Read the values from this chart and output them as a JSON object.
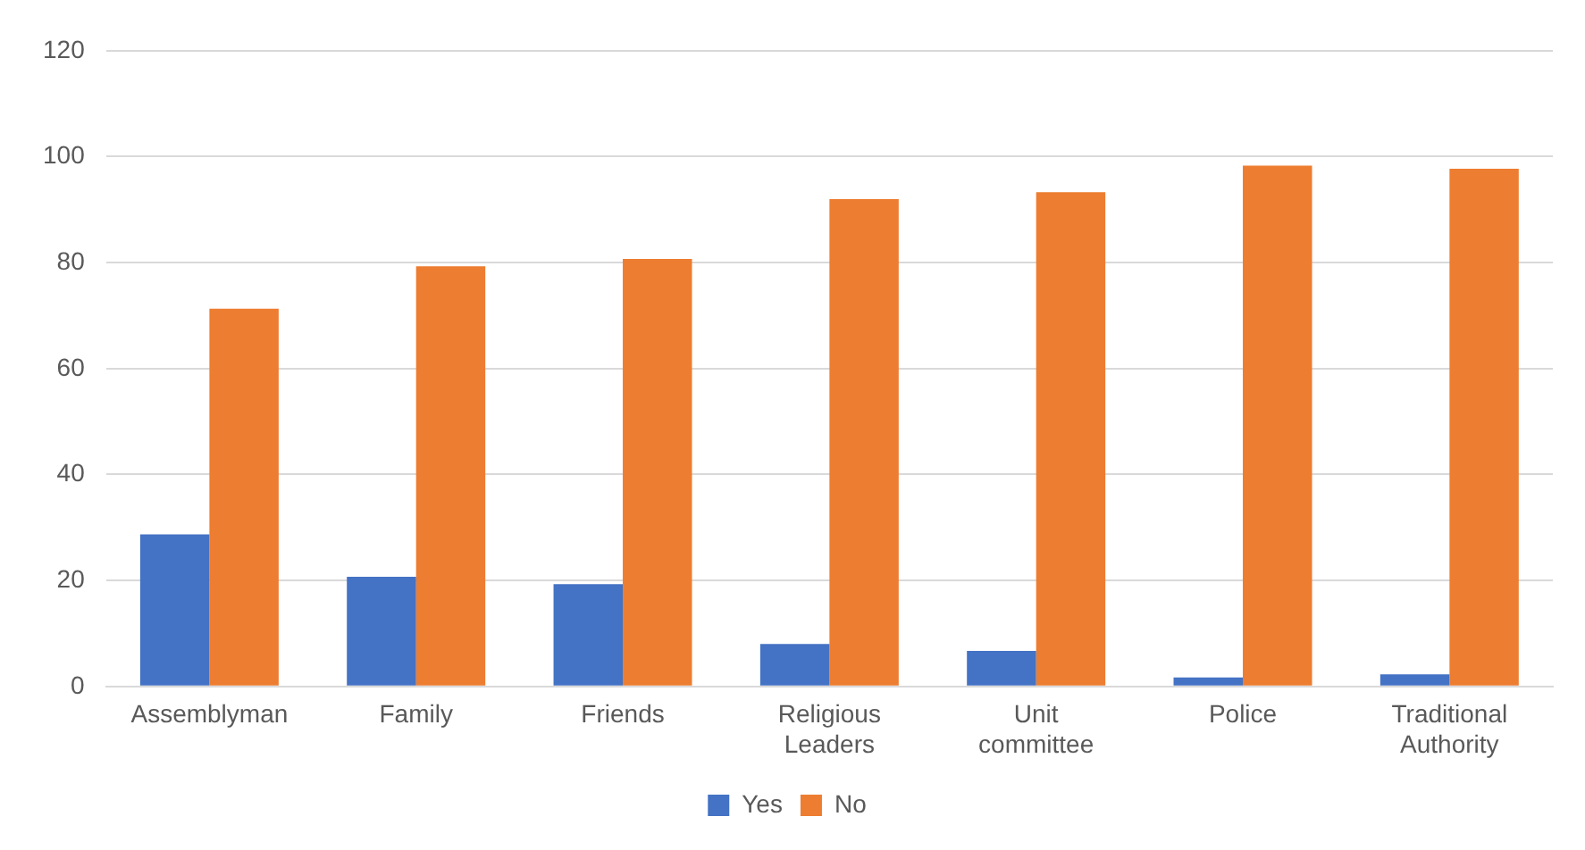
{
  "chart_data": {
    "type": "bar",
    "categories": [
      "Assemblyman",
      "Family",
      "Friends",
      "Religious Leaders",
      "Unit committee",
      "Police",
      "Traditional Authority"
    ],
    "series": [
      {
        "name": "Yes",
        "color": "#4472c4",
        "values": [
          28.7,
          20.7,
          19.3,
          8,
          6.7,
          1.7,
          2.3
        ]
      },
      {
        "name": "No",
        "color": "#ed7d31",
        "values": [
          71.3,
          79.3,
          80.7,
          92,
          93.3,
          98.3,
          97.7
        ]
      }
    ],
    "ylim": [
      0,
      120
    ],
    "yticks": [
      0,
      20,
      40,
      60,
      80,
      100,
      120
    ],
    "grid": "y",
    "legend": "bottom"
  }
}
